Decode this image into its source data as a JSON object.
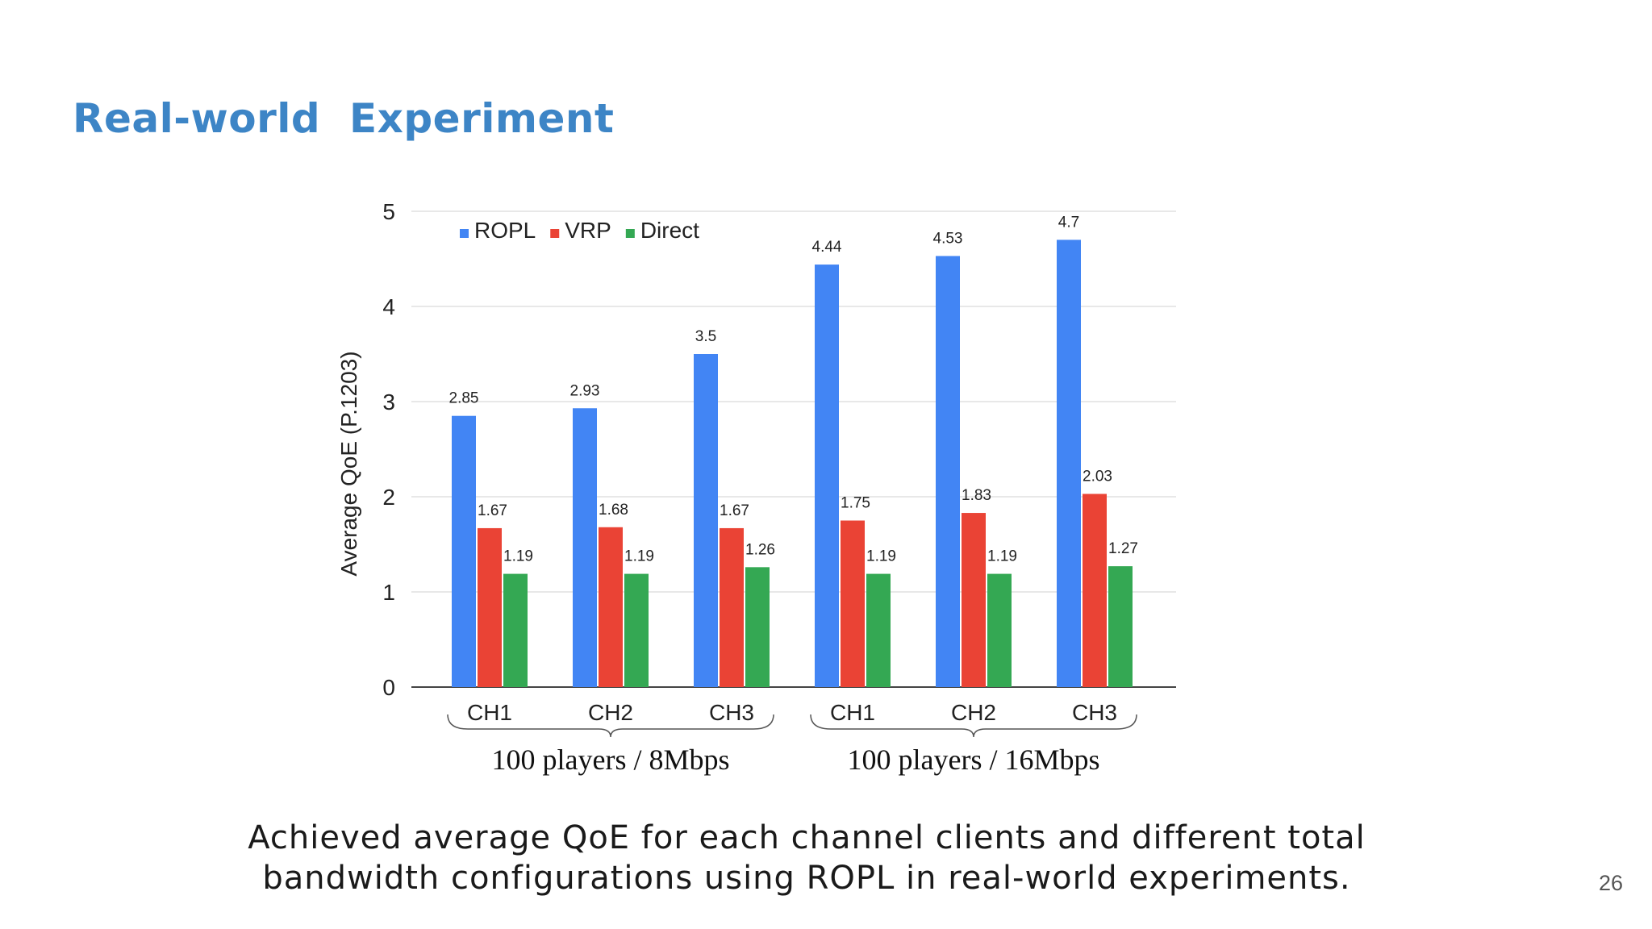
{
  "slide": {
    "title": "Real-world  Experiment",
    "caption_line1": "Achieved average QoE for each channel clients and different total",
    "caption_line2": "bandwidth configurations using ROPL in real-world experiments.",
    "page_number": "26"
  },
  "chart_data": {
    "type": "bar",
    "title": "",
    "xlabel": "",
    "ylabel": "Average QoE (P.1203)",
    "ylim": [
      0,
      5
    ],
    "yticks": [
      0,
      1,
      2,
      3,
      4,
      5
    ],
    "grid": true,
    "legend_position": "top-left",
    "categories": [
      "CH1",
      "CH2",
      "CH3",
      "CH1",
      "CH2",
      "CH3"
    ],
    "groups": [
      {
        "label": "100 players / 8Mbps",
        "categories": [
          0,
          1,
          2
        ]
      },
      {
        "label": "100 players / 16Mbps",
        "categories": [
          3,
          4,
          5
        ]
      }
    ],
    "series": [
      {
        "name": "ROPL",
        "color": "#4285f4",
        "values": [
          2.85,
          2.93,
          3.5,
          4.44,
          4.53,
          4.7
        ]
      },
      {
        "name": "VRP",
        "color": "#ea4335",
        "values": [
          1.67,
          1.68,
          1.67,
          1.75,
          1.83,
          2.03
        ]
      },
      {
        "name": "Direct",
        "color": "#34a853",
        "values": [
          1.19,
          1.19,
          1.26,
          1.19,
          1.19,
          1.27
        ]
      }
    ]
  }
}
